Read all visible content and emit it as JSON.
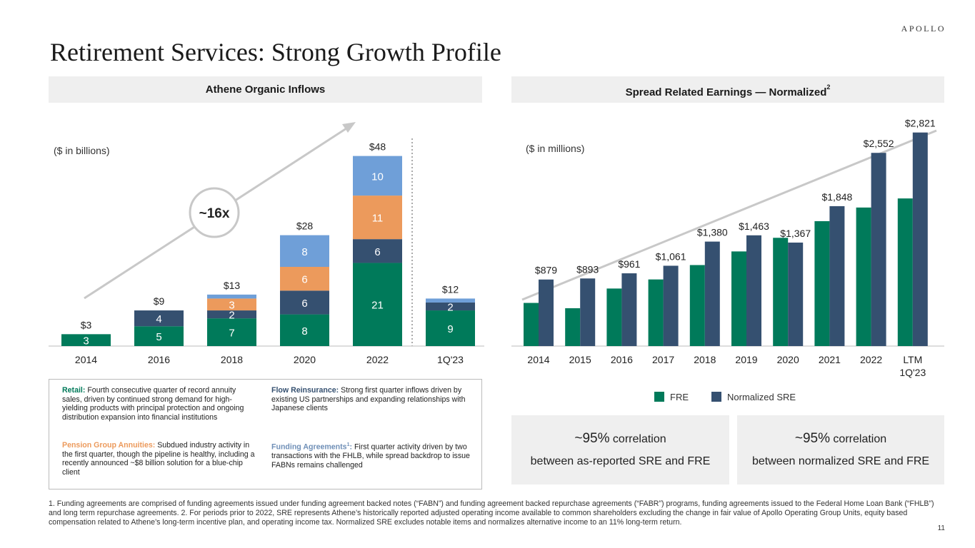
{
  "brand": "APOLLO",
  "title": "Retirement Services: Strong Growth Profile",
  "page_number": "11",
  "left_panel": {
    "header": "Athene Organic Inflows",
    "units": "($ in billions)",
    "multiplier_badge": "~16x"
  },
  "right_panel": {
    "header": "Spread Related Earnings — Normalized",
    "header_sup": "2",
    "units": "($ in millions)"
  },
  "colors": {
    "green": "#007a5a",
    "navy": "#355070",
    "orange": "#ec9a5c",
    "lightblue": "#6f9fd8",
    "gray": "#c8c8c8"
  },
  "chart_data": [
    {
      "type": "bar",
      "stacked": true,
      "title": "Athene Organic Inflows",
      "ylabel": "($ in billions)",
      "categories": [
        "2014",
        "2016",
        "2018",
        "2020",
        "2022",
        "1Q'23"
      ],
      "series": [
        {
          "name": "Retail",
          "color": "#007a5a",
          "values": [
            3,
            5,
            7,
            8,
            21,
            9
          ],
          "labels": [
            "3",
            "5",
            "7",
            "8",
            "21",
            "9"
          ]
        },
        {
          "name": "Flow Reinsurance",
          "color": "#355070",
          "values": [
            0,
            4,
            2,
            6,
            6,
            2
          ],
          "labels": [
            "",
            "4",
            "2",
            "6",
            "6",
            "2"
          ]
        },
        {
          "name": "Pension Group Annuities",
          "color": "#ec9a5c",
          "values": [
            0,
            0,
            3,
            6,
            11,
            0
          ],
          "labels": [
            "",
            "",
            "3",
            "6",
            "11",
            ""
          ]
        },
        {
          "name": "Funding Agreements",
          "color": "#6f9fd8",
          "values": [
            0,
            0,
            1,
            8,
            10,
            1
          ],
          "labels": [
            "",
            "",
            "",
            "8",
            "10",
            ""
          ]
        }
      ],
      "totals": [
        "$3",
        "$9",
        "$13",
        "$28",
        "$48",
        "$12"
      ],
      "ylim": [
        0,
        50
      ]
    },
    {
      "type": "bar",
      "title": "Spread Related Earnings — Normalized",
      "ylabel": "($ in millions)",
      "categories": [
        "2014",
        "2015",
        "2016",
        "2017",
        "2018",
        "2019",
        "2020",
        "2021",
        "2022",
        "LTM 1Q'23"
      ],
      "series": [
        {
          "name": "FRE",
          "color": "#007a5a",
          "values": [
            570,
            500,
            760,
            880,
            1070,
            1250,
            1430,
            1650,
            1830,
            1950
          ]
        },
        {
          "name": "Normalized SRE",
          "color": "#355070",
          "values": [
            879,
            893,
            961,
            1061,
            1380,
            1463,
            1367,
            1848,
            2552,
            2821
          ]
        }
      ],
      "value_labels": [
        "$879",
        "$893",
        "$961",
        "$1,061",
        "$1,380",
        "$1,463",
        "$1,367",
        "$1,848",
        "$2,552",
        "$2,821"
      ],
      "legend": [
        "FRE",
        "Normalized SRE"
      ],
      "ylim": [
        0,
        3000
      ]
    }
  ],
  "notes": {
    "retail_label": "Retail:",
    "retail_text": " Fourth consecutive quarter of record annuity sales, driven by continued strong demand for high-yielding products with principal protection and ongoing distribution expansion into financial institutions",
    "flow_label": "Flow Reinsurance:",
    "flow_text": " Strong first quarter inflows driven by existing US partnerships and expanding relationships with Japanese clients",
    "pga_label": "Pension Group Annuities:",
    "pga_text": " Subdued industry activity in the first quarter, though the pipeline is healthy, including a recently announced ~$8 billion solution for a blue-chip client",
    "fa_label": "Funding Agreements",
    "fa_sup": "1",
    "fa_colon": ":",
    "fa_text": " First quarter activity driven by two transactions with the FHLB, while spread backdrop to issue FABNs remains challenged"
  },
  "correlation": [
    {
      "big": "~95%",
      "small": " correlation",
      "line2": "between as-reported SRE and FRE"
    },
    {
      "big": "~95%",
      "small": " correlation",
      "line2": "between normalized SRE and FRE"
    }
  ],
  "footnote": "1. Funding agreements are comprised of funding agreements issued under funding agreement backed notes (“FABN”) and funding agreement backed repurchase agreements (“FABR”) programs, funding agreements issued to the Federal Home Loan Bank (“FHLB”) and long term repurchase agreements. 2. For periods prior to 2022, SRE represents Athene’s historically reported adjusted operating income available to common shareholders excluding the change in fair value of Apollo Operating Group Units, equity based compensation related to Athene’s long-term incentive plan, and operating income tax. Normalized SRE excludes notable items and normalizes alternative income to an 11% long-term return."
}
